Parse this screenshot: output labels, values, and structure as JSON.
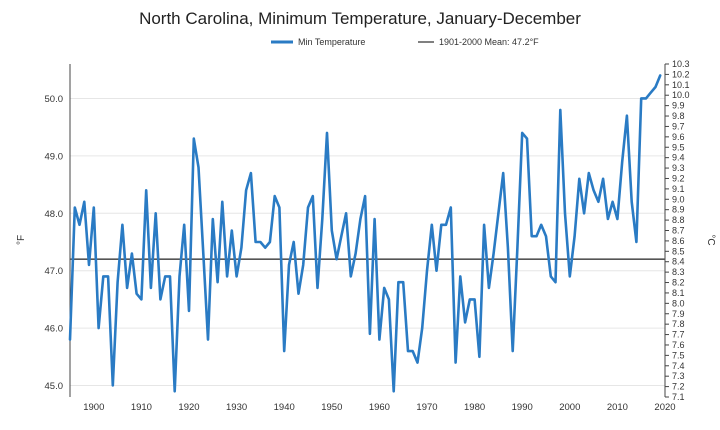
{
  "chart_data": {
    "type": "line",
    "title": "North Carolina, Minimum Temperature, January-December",
    "ylabel": "°F",
    "ylabel_right": "°C",
    "xlim": [
      1895,
      2020
    ],
    "ylim": [
      44.8,
      50.6
    ],
    "ylim_right": [
      7.1,
      10.3
    ],
    "x_ticks": [
      1900,
      1910,
      1920,
      1930,
      1940,
      1950,
      1960,
      1970,
      1980,
      1990,
      2000,
      2010,
      2020
    ],
    "y_ticks": [
      "45.0",
      "46.0",
      "47.0",
      "48.0",
      "49.0",
      "50.0"
    ],
    "y_right_ticks": [
      "7.1",
      "7.2",
      "7.3",
      "7.4",
      "7.5",
      "7.6",
      "7.7",
      "7.8",
      "7.9",
      "8.0",
      "8.1",
      "8.2",
      "8.3",
      "8.4",
      "8.5",
      "8.6",
      "8.7",
      "8.8",
      "8.9",
      "9.0",
      "9.1",
      "9.2",
      "9.3",
      "9.4",
      "9.5",
      "9.6",
      "9.7",
      "9.8",
      "9.9",
      "10.0",
      "10.1",
      "10.2",
      "10.3"
    ],
    "grid": true,
    "legend_position": "top",
    "mean": {
      "label": "1901-2000 Mean: 47.2°F",
      "value": 47.2,
      "color": "#555555"
    },
    "series": [
      {
        "name": "Min Temperature",
        "color": "#2a7bc4",
        "x": [
          1895,
          1896,
          1897,
          1898,
          1899,
          1900,
          1901,
          1902,
          1903,
          1904,
          1905,
          1906,
          1907,
          1908,
          1909,
          1910,
          1911,
          1912,
          1913,
          1914,
          1915,
          1916,
          1917,
          1918,
          1919,
          1920,
          1921,
          1922,
          1923,
          1924,
          1925,
          1926,
          1927,
          1928,
          1929,
          1930,
          1931,
          1932,
          1933,
          1934,
          1935,
          1936,
          1937,
          1938,
          1939,
          1940,
          1941,
          1942,
          1943,
          1944,
          1945,
          1946,
          1947,
          1948,
          1949,
          1950,
          1951,
          1952,
          1953,
          1954,
          1955,
          1956,
          1957,
          1958,
          1959,
          1960,
          1961,
          1962,
          1963,
          1964,
          1965,
          1966,
          1967,
          1968,
          1969,
          1970,
          1971,
          1972,
          1973,
          1974,
          1975,
          1976,
          1977,
          1978,
          1979,
          1980,
          1981,
          1982,
          1983,
          1984,
          1985,
          1986,
          1987,
          1988,
          1989,
          1990,
          1991,
          1992,
          1993,
          1994,
          1995,
          1996,
          1997,
          1998,
          1999,
          2000,
          2001,
          2002,
          2003,
          2004,
          2005,
          2006,
          2007,
          2008,
          2009,
          2010,
          2011,
          2012,
          2013,
          2014,
          2015,
          2016,
          2017,
          2018,
          2019
        ],
        "values": [
          45.8,
          48.1,
          47.8,
          48.2,
          47.1,
          48.1,
          46.0,
          46.9,
          46.9,
          45.0,
          46.8,
          47.8,
          46.7,
          47.3,
          46.6,
          46.5,
          48.4,
          46.7,
          48.0,
          46.5,
          46.9,
          46.9,
          44.9,
          46.9,
          47.8,
          46.3,
          49.3,
          48.8,
          47.3,
          45.8,
          47.9,
          46.8,
          48.2,
          46.9,
          47.7,
          46.9,
          47.4,
          48.4,
          48.7,
          47.5,
          47.5,
          47.4,
          47.5,
          48.3,
          48.1,
          45.6,
          47.1,
          47.5,
          46.6,
          47.1,
          48.1,
          48.3,
          46.7,
          47.9,
          49.4,
          47.7,
          47.2,
          47.6,
          48.0,
          46.9,
          47.3,
          47.9,
          48.3,
          45.9,
          47.9,
          45.8,
          46.7,
          46.5,
          44.9,
          46.8,
          46.8,
          45.6,
          45.6,
          45.4,
          46.0,
          47.0,
          47.8,
          47.0,
          47.8,
          47.8,
          48.1,
          45.4,
          46.9,
          46.1,
          46.5,
          46.5,
          45.5,
          47.8,
          46.7,
          47.3,
          48.0,
          48.7,
          47.4,
          45.6,
          47.4,
          49.4,
          49.3,
          47.6,
          47.6,
          47.8,
          47.6,
          46.9,
          46.8,
          49.8,
          48.0,
          46.9,
          47.6,
          48.6,
          48.0,
          48.7,
          48.4,
          48.2,
          48.6,
          47.9,
          48.2,
          47.9,
          48.9,
          49.7,
          48.2,
          47.5,
          50.0,
          50.0,
          50.1,
          50.2,
          50.4
        ]
      }
    ]
  }
}
